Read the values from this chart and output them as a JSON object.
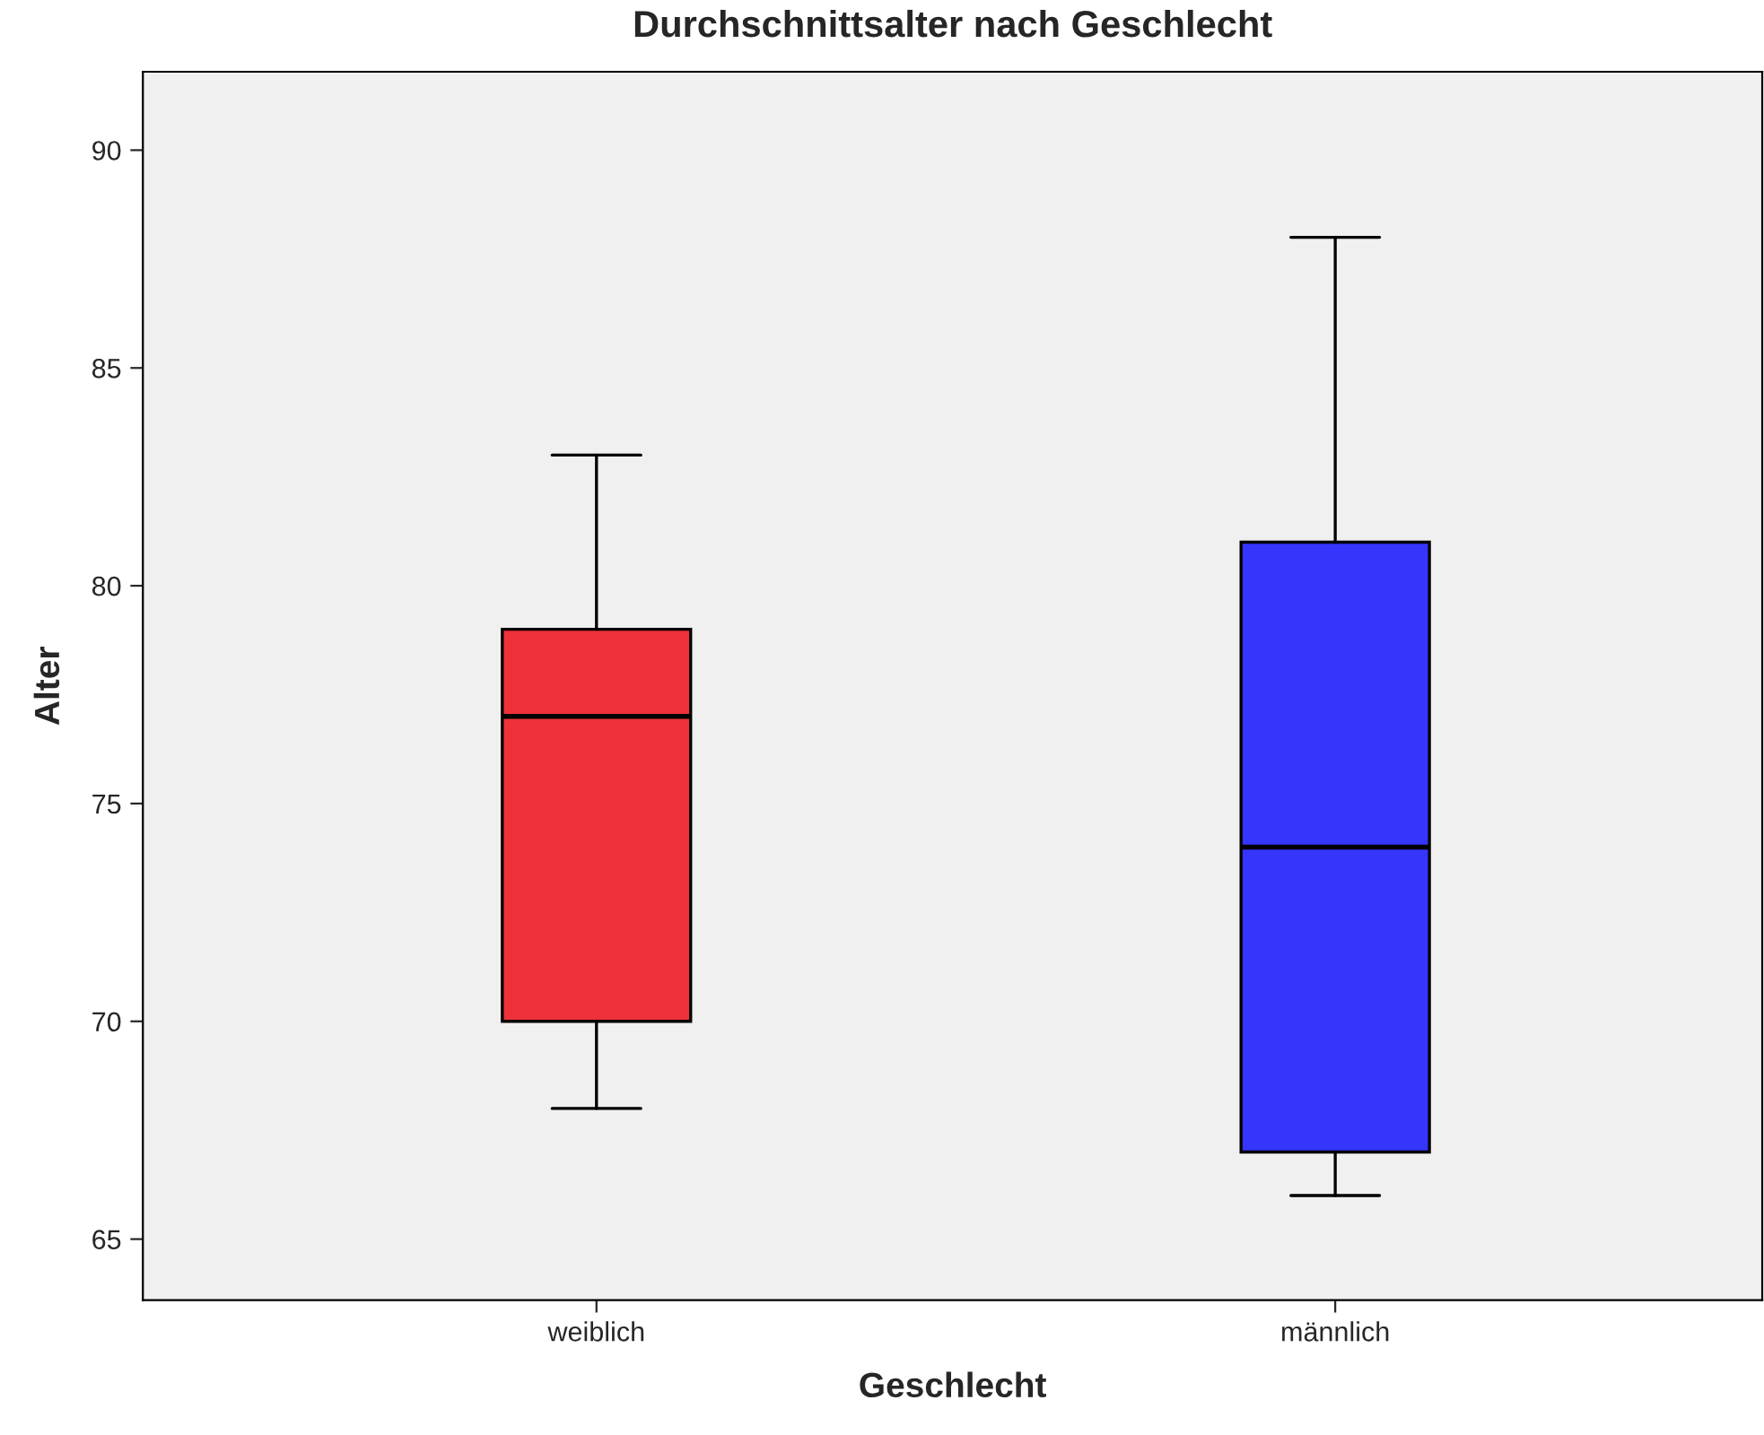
{
  "chart_data": {
    "type": "box",
    "title": "Durchschnittsalter nach Geschlecht",
    "xlabel": "Geschlecht",
    "ylabel": "Alter",
    "categories": [
      "weiblich",
      "männlich"
    ],
    "boxes": [
      {
        "low": 68,
        "q1": 70,
        "median": 77,
        "q3": 79,
        "high": 83
      },
      {
        "low": 66,
        "q1": 67,
        "median": 74,
        "q3": 81,
        "high": 88
      }
    ],
    "colors": [
      "#ee3239",
      "#3535fb"
    ],
    "ylim": [
      63.6,
      91.8
    ],
    "yticks": [
      65,
      70,
      75,
      80,
      85,
      90
    ]
  }
}
